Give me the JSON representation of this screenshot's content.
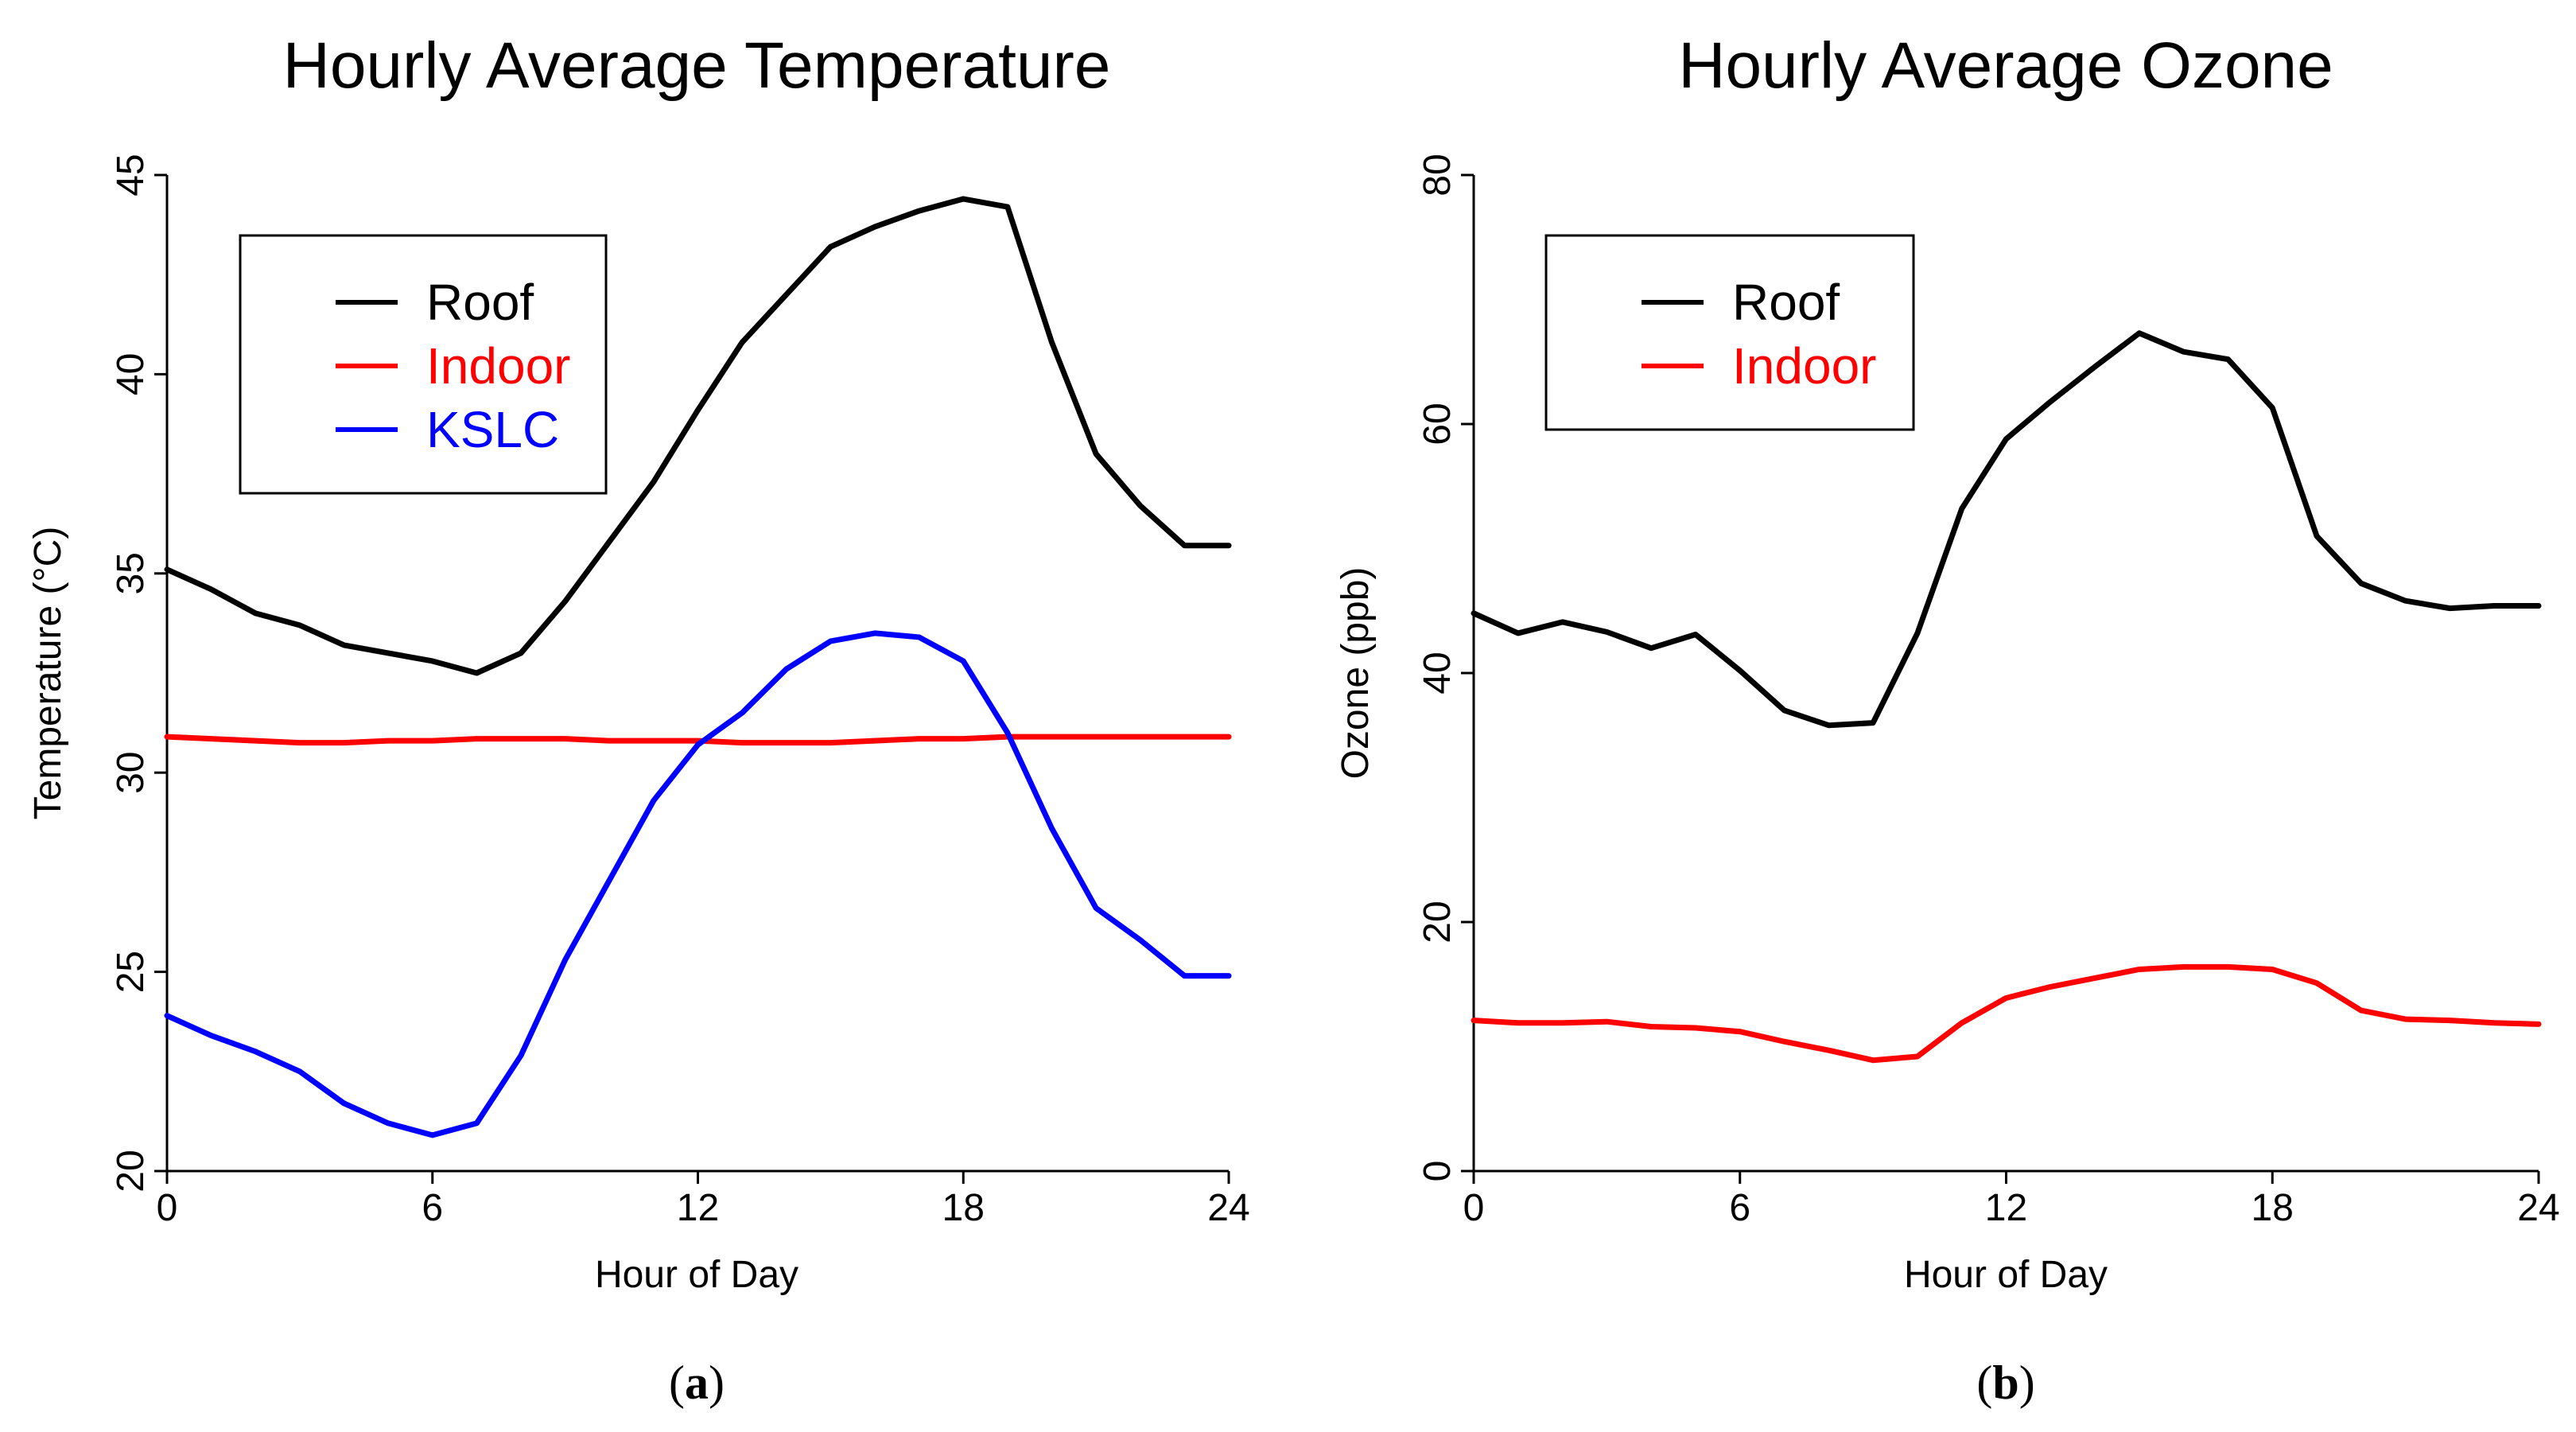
{
  "chart_data": [
    {
      "type": "line",
      "title": "Hourly Average Temperature",
      "xlabel": "Hour of Day",
      "ylabel": "Temperature (°C)",
      "xlim": [
        0,
        24
      ],
      "ylim": [
        20,
        45
      ],
      "xticks": [
        0,
        6,
        12,
        18,
        24
      ],
      "yticks": [
        20,
        25,
        30,
        35,
        40,
        45
      ],
      "x": [
        0,
        1,
        2,
        3,
        4,
        5,
        6,
        7,
        8,
        9,
        10,
        11,
        12,
        13,
        14,
        15,
        16,
        17,
        18,
        19,
        20,
        21,
        22,
        23,
        24
      ],
      "series": [
        {
          "name": "Roof",
          "color": "#000000",
          "values": [
            35.1,
            34.6,
            34.0,
            33.7,
            33.2,
            33.0,
            32.8,
            32.5,
            33.0,
            34.3,
            35.8,
            37.3,
            39.1,
            40.8,
            42.0,
            43.2,
            43.7,
            44.1,
            44.4,
            44.2,
            40.8,
            38.0,
            36.7,
            35.7,
            35.7
          ],
          "legend_color": "#000000"
        },
        {
          "name": "Indoor",
          "color": "#ff0000",
          "values": [
            30.9,
            30.85,
            30.8,
            30.75,
            30.75,
            30.8,
            30.8,
            30.85,
            30.85,
            30.85,
            30.8,
            30.8,
            30.8,
            30.75,
            30.75,
            30.75,
            30.8,
            30.85,
            30.85,
            30.9,
            30.9,
            30.9,
            30.9,
            30.9,
            30.9
          ],
          "legend_color": "#ff0000"
        },
        {
          "name": "KSLC",
          "color": "#0000ff",
          "values": [
            23.9,
            23.4,
            23.0,
            22.5,
            21.7,
            21.2,
            20.9,
            21.2,
            22.9,
            25.3,
            27.3,
            29.3,
            30.7,
            31.5,
            32.6,
            33.3,
            33.5,
            33.4,
            32.8,
            31.0,
            28.6,
            26.6,
            25.8,
            24.9,
            24.9
          ],
          "legend_color": "#0000ff"
        }
      ],
      "legend_placement": "top-left",
      "grid": false,
      "subfigure_label": {
        "open": "(",
        "letter": "a",
        "close": ")"
      }
    },
    {
      "type": "line",
      "title": "Hourly Average Ozone",
      "xlabel": "Hour of Day",
      "ylabel": "Ozone (ppb)",
      "xlim": [
        0,
        24
      ],
      "ylim": [
        0,
        80
      ],
      "xticks": [
        0,
        6,
        12,
        18,
        24
      ],
      "yticks": [
        0,
        20,
        40,
        60,
        80
      ],
      "x": [
        0,
        1,
        2,
        3,
        4,
        5,
        6,
        7,
        8,
        9,
        10,
        11,
        12,
        13,
        14,
        15,
        16,
        17,
        18,
        19,
        20,
        21,
        22,
        23,
        24
      ],
      "series": [
        {
          "name": "Roof",
          "color": "#000000",
          "values": [
            44.8,
            43.2,
            44.1,
            43.3,
            42.0,
            43.1,
            40.2,
            37.0,
            35.8,
            36.0,
            43.2,
            53.2,
            58.8,
            61.8,
            64.6,
            67.3,
            65.8,
            65.2,
            61.3,
            51.0,
            47.2,
            45.8,
            45.2,
            45.4,
            45.4
          ],
          "legend_color": "#000000"
        },
        {
          "name": "Indoor",
          "color": "#ff0000",
          "values": [
            12.1,
            11.9,
            11.9,
            12.0,
            11.6,
            11.5,
            11.2,
            10.4,
            9.7,
            8.9,
            9.2,
            11.9,
            13.9,
            14.8,
            15.5,
            16.2,
            16.4,
            16.4,
            16.2,
            15.1,
            12.9,
            12.2,
            12.1,
            11.9,
            11.8
          ],
          "legend_color": "#ff0000"
        }
      ],
      "legend_placement": "top-left",
      "grid": false,
      "subfigure_label": {
        "open": "(",
        "letter": "b",
        "close": ")"
      }
    }
  ]
}
